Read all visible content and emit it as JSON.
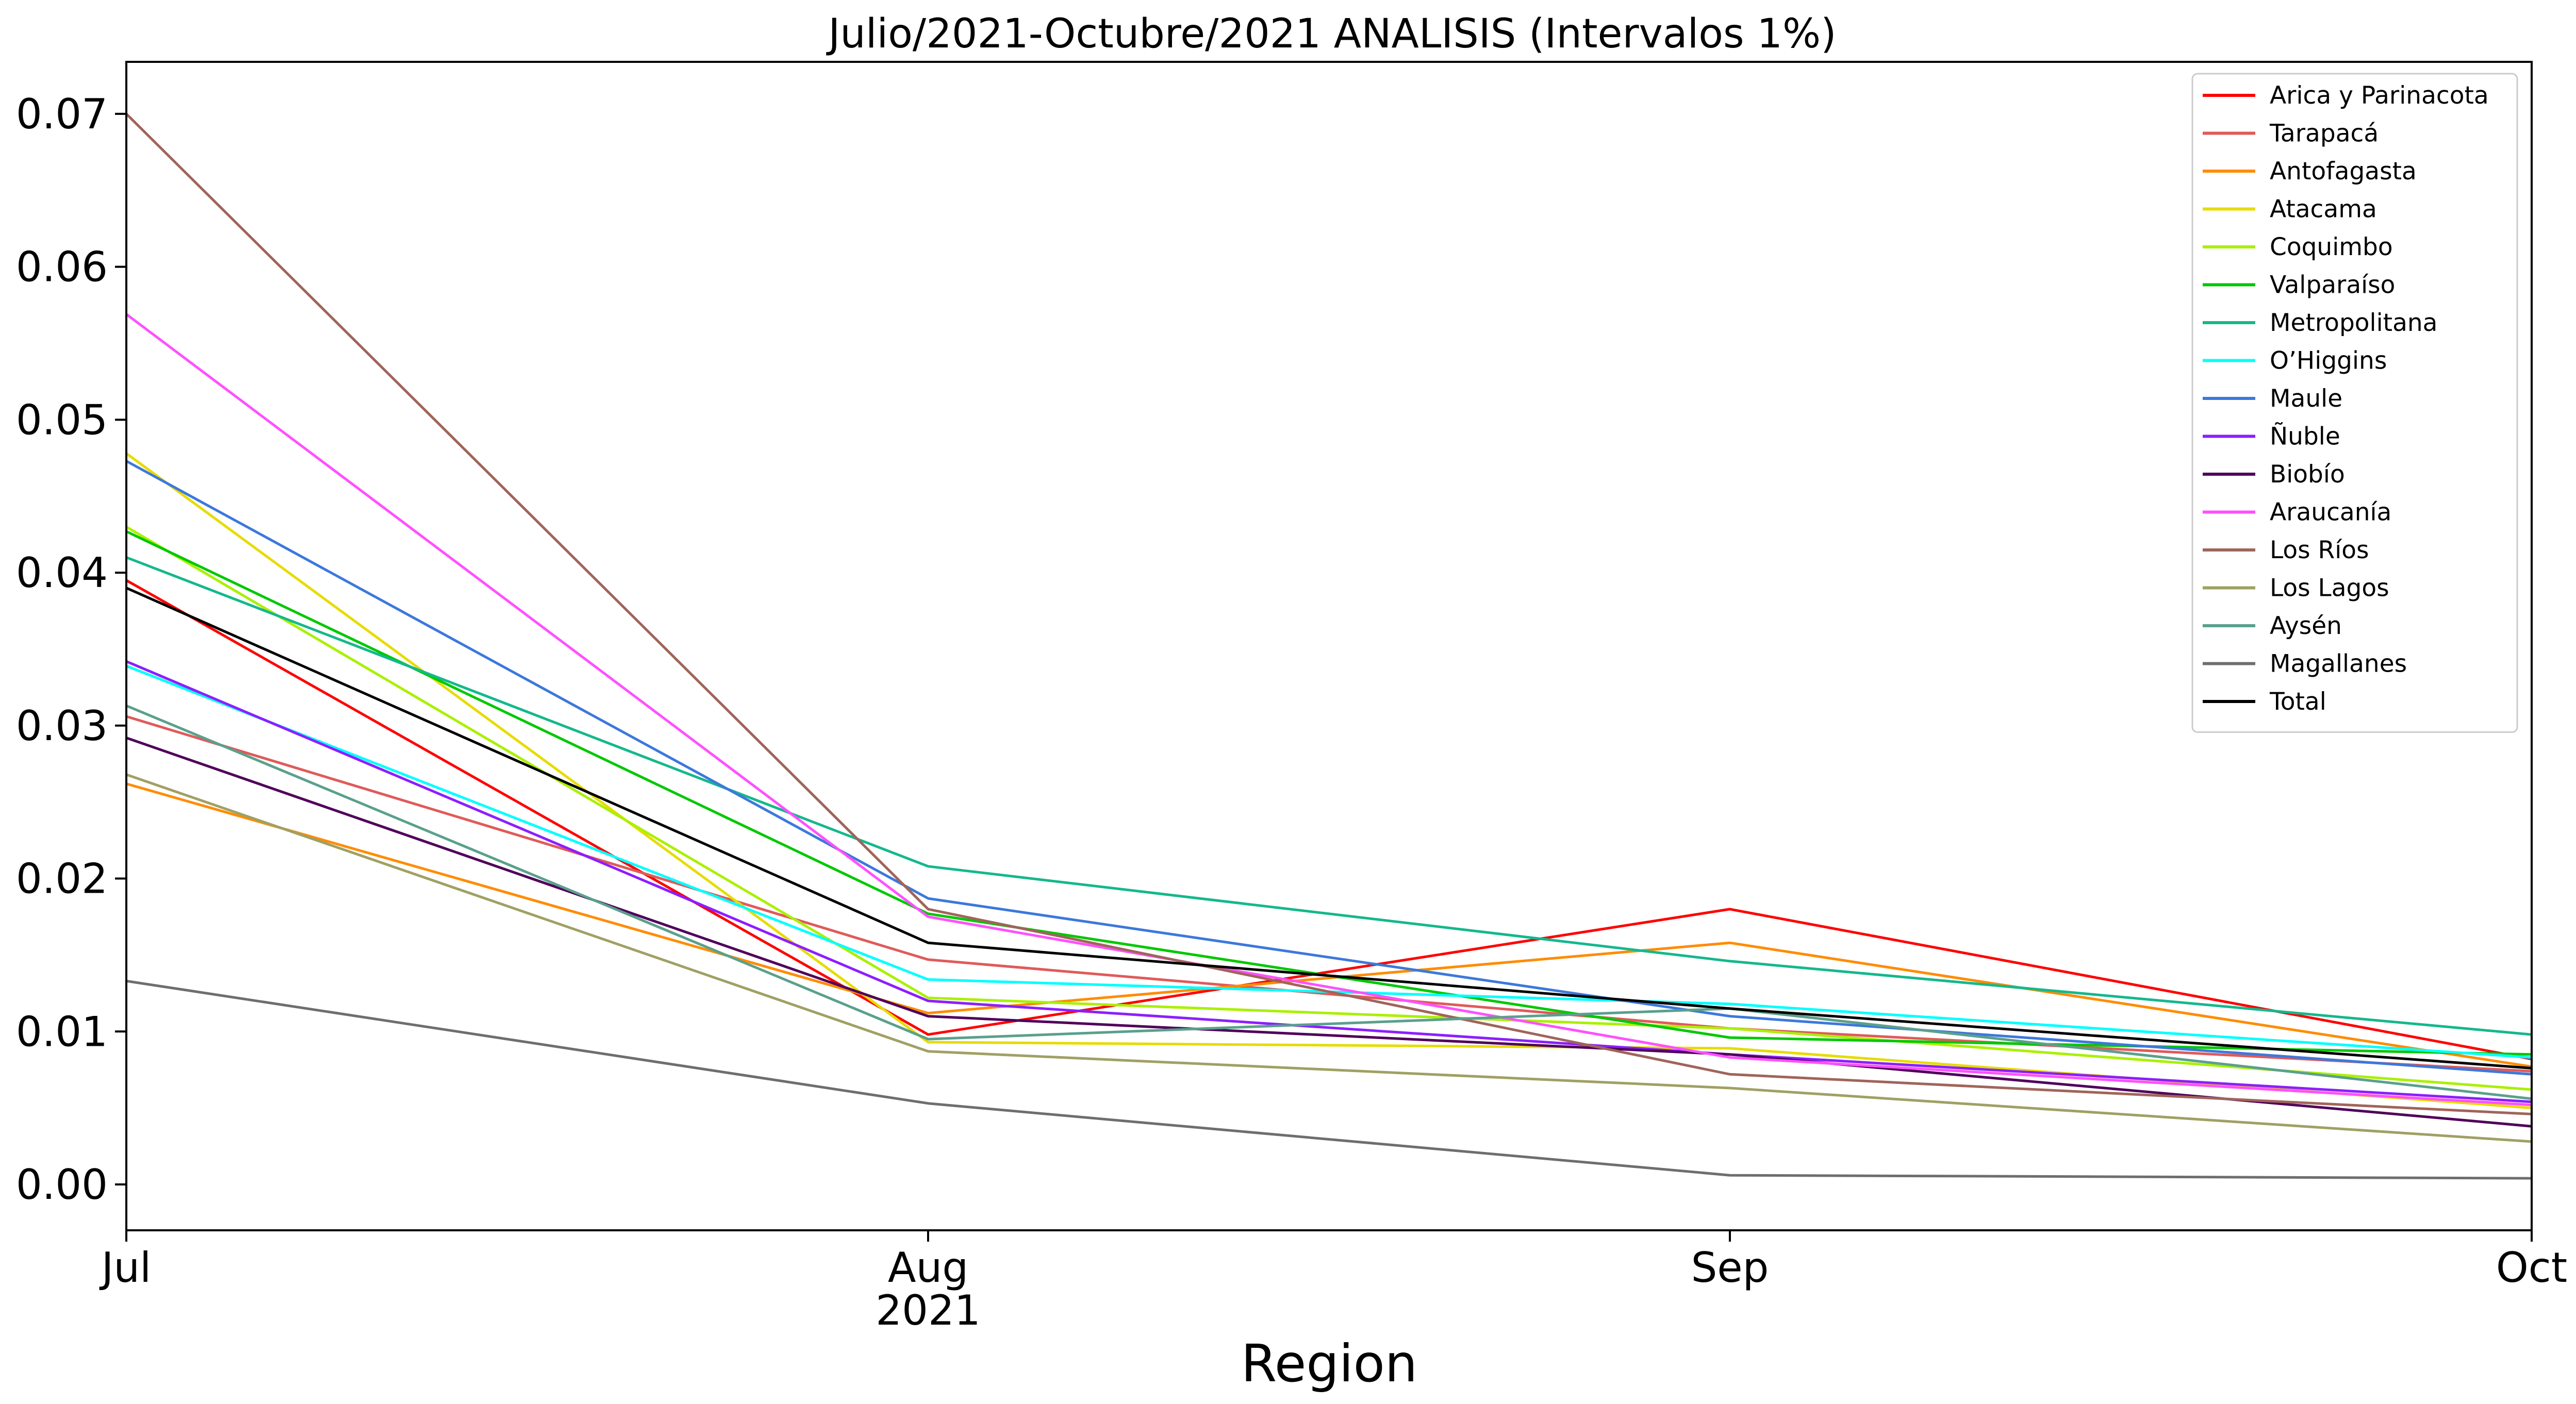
{
  "chart_data": {
    "type": "line",
    "title": "Julio/2021-Octubre/2021 ANALISIS (Intervalos 1%)",
    "xlabel": "Region",
    "ylabel": "",
    "x": [
      "Jul",
      "Aug",
      "Sep",
      "Oct"
    ],
    "x_year_label": "2021",
    "ylim": [
      -0.003,
      0.0734
    ],
    "yticks": [
      0.0,
      0.01,
      0.02,
      0.03,
      0.04,
      0.05,
      0.06,
      0.07
    ],
    "ytick_labels": [
      "0.00",
      "0.01",
      "0.02",
      "0.03",
      "0.04",
      "0.05",
      "0.06",
      "0.07"
    ],
    "grid": false,
    "legend_position": "top-right",
    "series": [
      {
        "name": "Arica y Parinacota",
        "color": "#ff0000",
        "values": [
          0.0395,
          0.0098,
          0.018,
          0.0082
        ]
      },
      {
        "name": "Tarapacá",
        "color": "#e05a5a",
        "values": [
          0.0306,
          0.0147,
          0.0102,
          0.0074
        ]
      },
      {
        "name": "Antofagasta",
        "color": "#ff8c00",
        "values": [
          0.0262,
          0.0112,
          0.0158,
          0.0077
        ]
      },
      {
        "name": "Atacama",
        "color": "#e6dc00",
        "values": [
          0.0478,
          0.0093,
          0.0089,
          0.005
        ]
      },
      {
        "name": "Coquimbo",
        "color": "#aaf000",
        "values": [
          0.043,
          0.0122,
          0.0102,
          0.0062
        ]
      },
      {
        "name": "Valparaíso",
        "color": "#00c800",
        "values": [
          0.0427,
          0.0177,
          0.0096,
          0.0085
        ]
      },
      {
        "name": "Metropolitana",
        "color": "#14b88c",
        "values": [
          0.041,
          0.0208,
          0.0146,
          0.0098
        ]
      },
      {
        "name": "O’Higgins",
        "color": "#00ffff",
        "values": [
          0.0339,
          0.0134,
          0.0118,
          0.0083
        ]
      },
      {
        "name": "Maule",
        "color": "#3c78dc",
        "values": [
          0.0473,
          0.0187,
          0.011,
          0.0072
        ]
      },
      {
        "name": "Ñuble",
        "color": "#8c1eff",
        "values": [
          0.0342,
          0.012,
          0.0085,
          0.0054
        ]
      },
      {
        "name": "Biobío",
        "color": "#50005a",
        "values": [
          0.0292,
          0.011,
          0.0085,
          0.0038
        ]
      },
      {
        "name": "Araucanía",
        "color": "#ff50ff",
        "values": [
          0.0569,
          0.0175,
          0.0083,
          0.0052
        ]
      },
      {
        "name": "Los Ríos",
        "color": "#a0645a",
        "values": [
          0.07,
          0.018,
          0.0072,
          0.0046
        ]
      },
      {
        "name": "Los Lagos",
        "color": "#a0a064",
        "values": [
          0.0268,
          0.0087,
          0.0063,
          0.0028
        ]
      },
      {
        "name": "Aysén",
        "color": "#5aa08c",
        "values": [
          0.0313,
          0.0095,
          0.0115,
          0.0056
        ]
      },
      {
        "name": "Magallanes",
        "color": "#6e6e6e",
        "values": [
          0.0133,
          0.0053,
          0.0006,
          0.0004
        ]
      },
      {
        "name": "Total",
        "color": "#000000",
        "values": [
          0.039,
          0.0158,
          0.0115,
          0.0076
        ]
      }
    ]
  }
}
